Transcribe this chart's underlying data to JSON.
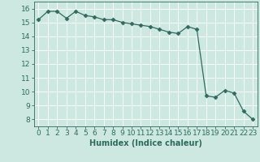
{
  "x": [
    0,
    1,
    2,
    3,
    4,
    5,
    6,
    7,
    8,
    9,
    10,
    11,
    12,
    13,
    14,
    15,
    16,
    17,
    18,
    19,
    20,
    21,
    22,
    23
  ],
  "y": [
    15.2,
    15.8,
    15.8,
    15.3,
    15.8,
    15.5,
    15.4,
    15.2,
    15.2,
    15.0,
    14.9,
    14.8,
    14.7,
    14.5,
    14.3,
    14.2,
    14.7,
    14.5,
    9.7,
    9.6,
    10.1,
    9.9,
    8.6,
    8.0
  ],
  "xlabel": "Humidex (Indice chaleur)",
  "xlim": [
    -0.5,
    23.5
  ],
  "ylim": [
    7.5,
    16.5
  ],
  "yticks": [
    8,
    9,
    10,
    11,
    12,
    13,
    14,
    15,
    16
  ],
  "xticks": [
    0,
    1,
    2,
    3,
    4,
    5,
    6,
    7,
    8,
    9,
    10,
    11,
    12,
    13,
    14,
    15,
    16,
    17,
    18,
    19,
    20,
    21,
    22,
    23
  ],
  "line_color": "#2e6b5e",
  "marker": "D",
  "marker_size": 2.5,
  "bg_color": "#cce8e0",
  "grid_color": "#ffffff",
  "axis_color": "#2e6b5e",
  "tick_color": "#2e6b5e",
  "xlabel_color": "#2e6b5e",
  "xlabel_fontsize": 7,
  "tick_fontsize": 6.5
}
